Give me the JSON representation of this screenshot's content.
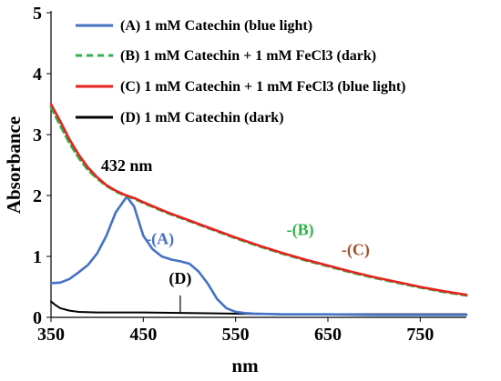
{
  "chart_data": {
    "type": "line",
    "xlabel": "nm",
    "ylabel": "Absorbance",
    "xlim": [
      350,
      800
    ],
    "ylim": [
      0,
      5
    ],
    "x_ticks": [
      350,
      450,
      550,
      650,
      750
    ],
    "y_ticks": [
      0,
      1,
      2,
      3,
      4,
      5
    ],
    "grid": false,
    "legend_position": "top-left",
    "series": [
      {
        "name": "(A) 1 mM Catechin (blue light)",
        "color": "#4472C4",
        "style": "solid",
        "x": [
          350,
          360,
          370,
          380,
          390,
          400,
          410,
          420,
          432,
          440,
          450,
          460,
          470,
          480,
          490,
          500,
          510,
          520,
          530,
          540,
          550,
          560,
          570,
          600,
          650,
          700,
          750,
          800
        ],
        "y": [
          0.56,
          0.57,
          0.63,
          0.74,
          0.86,
          1.05,
          1.34,
          1.72,
          1.98,
          1.82,
          1.34,
          1.12,
          1.0,
          0.95,
          0.92,
          0.88,
          0.75,
          0.55,
          0.3,
          0.15,
          0.09,
          0.07,
          0.06,
          0.05,
          0.05,
          0.04,
          0.04,
          0.04
        ]
      },
      {
        "name": "(B) 1 mM Catechin + 1 mM FeCl3 (dark)",
        "color": "#2DB34A",
        "style": "dashed",
        "x": [
          350,
          360,
          370,
          380,
          390,
          400,
          410,
          420,
          430,
          440,
          450,
          475,
          500,
          525,
          550,
          575,
          600,
          625,
          650,
          675,
          700,
          725,
          750,
          775,
          800
        ],
        "y": [
          3.45,
          3.15,
          2.86,
          2.62,
          2.42,
          2.28,
          2.16,
          2.07,
          2.0,
          1.95,
          1.88,
          1.72,
          1.58,
          1.44,
          1.3,
          1.17,
          1.05,
          0.94,
          0.84,
          0.74,
          0.65,
          0.57,
          0.49,
          0.42,
          0.36
        ]
      },
      {
        "name": "(C) 1 mM Catechin + 1 mM FeCl3 (blue light)",
        "color": "#E8211E",
        "style": "solid",
        "x": [
          350,
          360,
          370,
          380,
          390,
          400,
          410,
          420,
          430,
          440,
          450,
          475,
          500,
          525,
          550,
          575,
          600,
          625,
          650,
          675,
          700,
          725,
          750,
          775,
          800
        ],
        "y": [
          3.5,
          3.22,
          2.92,
          2.67,
          2.46,
          2.3,
          2.17,
          2.08,
          2.01,
          1.96,
          1.89,
          1.73,
          1.59,
          1.45,
          1.31,
          1.18,
          1.06,
          0.95,
          0.85,
          0.75,
          0.66,
          0.58,
          0.5,
          0.43,
          0.37
        ]
      },
      {
        "name": "(D) 1 mM Catechin (dark)",
        "color": "#000000",
        "style": "solid",
        "x": [
          350,
          355,
          360,
          370,
          380,
          400,
          430,
          450,
          500,
          550,
          600,
          650,
          700,
          750,
          800
        ],
        "y": [
          0.26,
          0.2,
          0.15,
          0.11,
          0.09,
          0.08,
          0.08,
          0.08,
          0.07,
          0.06,
          0.05,
          0.05,
          0.05,
          0.05,
          0.05
        ]
      }
    ],
    "annotations": [
      {
        "text": "432 nm",
        "x": 432,
        "y": 2.4,
        "color": "#000000"
      },
      {
        "text": "-(A)",
        "x": 468,
        "y": 1.2,
        "color": "#4472C4"
      },
      {
        "text": "-(B)",
        "x": 620,
        "y": 1.35,
        "color": "#2DB34A"
      },
      {
        "text": "-(C)",
        "x": 680,
        "y": 1.02,
        "color": "#A0522D"
      },
      {
        "text": "(D)",
        "x": 490,
        "y": 0.55,
        "color": "#000000"
      }
    ]
  }
}
